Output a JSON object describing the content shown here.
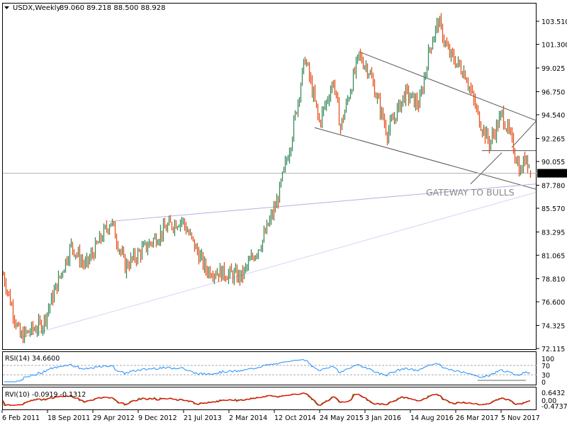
{
  "header": {
    "symbol_timeframe": "USDX,Weekly",
    "ohlc": "89.060 89.218 88.500 88.928"
  },
  "colors": {
    "up_bar": "#3b8a5c",
    "down_bar": "#e8501c",
    "trendline": "#555555",
    "purple_trendline": "#b9aee0",
    "purple_light": "#d8d2f2",
    "rsi_line": "#1e90ff",
    "rvi_main": "#20a020",
    "rvi_signal": "#ff0000",
    "price_label_bg": "#000000"
  },
  "chart_data": [
    {
      "type": "ohlc",
      "title": "USDX,Weekly",
      "ylim": [
        72.115,
        103.51
      ],
      "yticks": [
        "103.510",
        "101.300",
        "99.025",
        "96.750",
        "94.540",
        "92.265",
        "90.055",
        "87.780",
        "85.570",
        "83.295",
        "81.065",
        "78.810",
        "76.600",
        "74.325",
        "72.115"
      ],
      "current_price": "88.928",
      "last_bar": {
        "open": 89.06,
        "high": 89.218,
        "low": 88.5,
        "close": 88.928
      },
      "weekly_close_approx": [
        [
          "2011-02-06",
          79.2
        ],
        [
          "2011-05-01",
          73.2
        ],
        [
          "2011-08-21",
          74.5
        ],
        [
          "2012-01-08",
          82.0
        ],
        [
          "2012-03-18",
          80.0
        ],
        [
          "2012-07-22",
          84.4
        ],
        [
          "2012-09-30",
          80.0
        ],
        [
          "2013-04-28",
          83.8
        ],
        [
          "2013-07-07",
          84.5
        ],
        [
          "2013-11-03",
          79.7
        ],
        [
          "2014-04-27",
          79.0
        ],
        [
          "2014-08-10",
          82.5
        ],
        [
          "2014-10-19",
          86.1
        ],
        [
          "2014-12-28",
          92.0
        ],
        [
          "2015-03-08",
          100.0
        ],
        [
          "2015-05-17",
          93.8
        ],
        [
          "2015-07-26",
          97.8
        ],
        [
          "2015-08-30",
          93.3
        ],
        [
          "2015-11-29",
          100.2
        ],
        [
          "2016-01-17",
          98.8
        ],
        [
          "2016-04-17",
          92.8
        ],
        [
          "2016-07-14",
          96.6
        ],
        [
          "2016-09-22",
          95.5
        ],
        [
          "2016-11-13",
          101.0
        ],
        [
          "2016-12-25",
          103.5
        ],
        [
          "2017-02-12",
          100.5
        ],
        [
          "2017-05-07",
          98.5
        ],
        [
          "2017-07-16",
          94.0
        ],
        [
          "2017-09-03",
          91.8
        ],
        [
          "2017-11-05",
          94.6
        ],
        [
          "2017-12-17",
          92.3
        ],
        [
          "2018-02-04",
          89.0
        ],
        [
          "2018-03-04",
          90.8
        ],
        [
          "2018-03-25",
          88.928
        ]
      ],
      "trendlines": [
        {
          "name": "upper-channel",
          "from": [
            "2015-11-29",
            100.6
          ],
          "to": [
            "2018-04-22",
            94.0
          ],
          "style": "dark"
        },
        {
          "name": "lower-channel",
          "from": [
            "2015-04-26",
            93.3
          ],
          "to": [
            "2018-04-22",
            87.4
          ],
          "style": "dark"
        },
        {
          "name": "horizontal-support",
          "from": [
            "2017-07-30",
            91.1
          ],
          "to": [
            "2018-04-22",
            91.1
          ],
          "style": "dark"
        },
        {
          "name": "gateway-pointer-lower",
          "from": [
            "2017-06-04",
            87.9
          ],
          "to": [
            "2017-11-05",
            90.9
          ],
          "style": "dark"
        },
        {
          "name": "gateway-pointer-upper",
          "from": [
            "2017-12-24",
            91.4
          ],
          "to": [
            "2018-04-22",
            93.9
          ],
          "style": "dark"
        },
        {
          "name": "purple-resistance",
          "from": [
            "2012-07-15",
            84.3
          ],
          "to": [
            "2018-04-22",
            87.9
          ],
          "style": "purple"
        },
        {
          "name": "purple-support",
          "from": [
            "2011-05-01",
            73.15
          ],
          "to": [
            "2018-04-22",
            87.1
          ],
          "style": "purple_light"
        }
      ],
      "annotation": "GATEWAY TO BULLS",
      "xticks": [
        "6 Feb 2011",
        "18 Sep 2011",
        "29 Apr 2012",
        "9 Dec 2012",
        "21 Jul 2013",
        "2 Mar 2014",
        "12 Oct 2014",
        "24 May 2015",
        "3 Jan 2016",
        "14 Aug 2016",
        "26 Mar 2017",
        "5 Nov 2017"
      ]
    },
    {
      "type": "line",
      "title": "RSI(14) 34.6600",
      "ylim": [
        0,
        100
      ],
      "yticks": [
        "100",
        "70",
        "30",
        "0"
      ],
      "levels": [
        70,
        30
      ]
    },
    {
      "type": "line",
      "title": "RVI(10) -0.0919 -0.1312",
      "yticks": [
        "0.6432",
        "0.00",
        "-0.4737"
      ]
    }
  ]
}
